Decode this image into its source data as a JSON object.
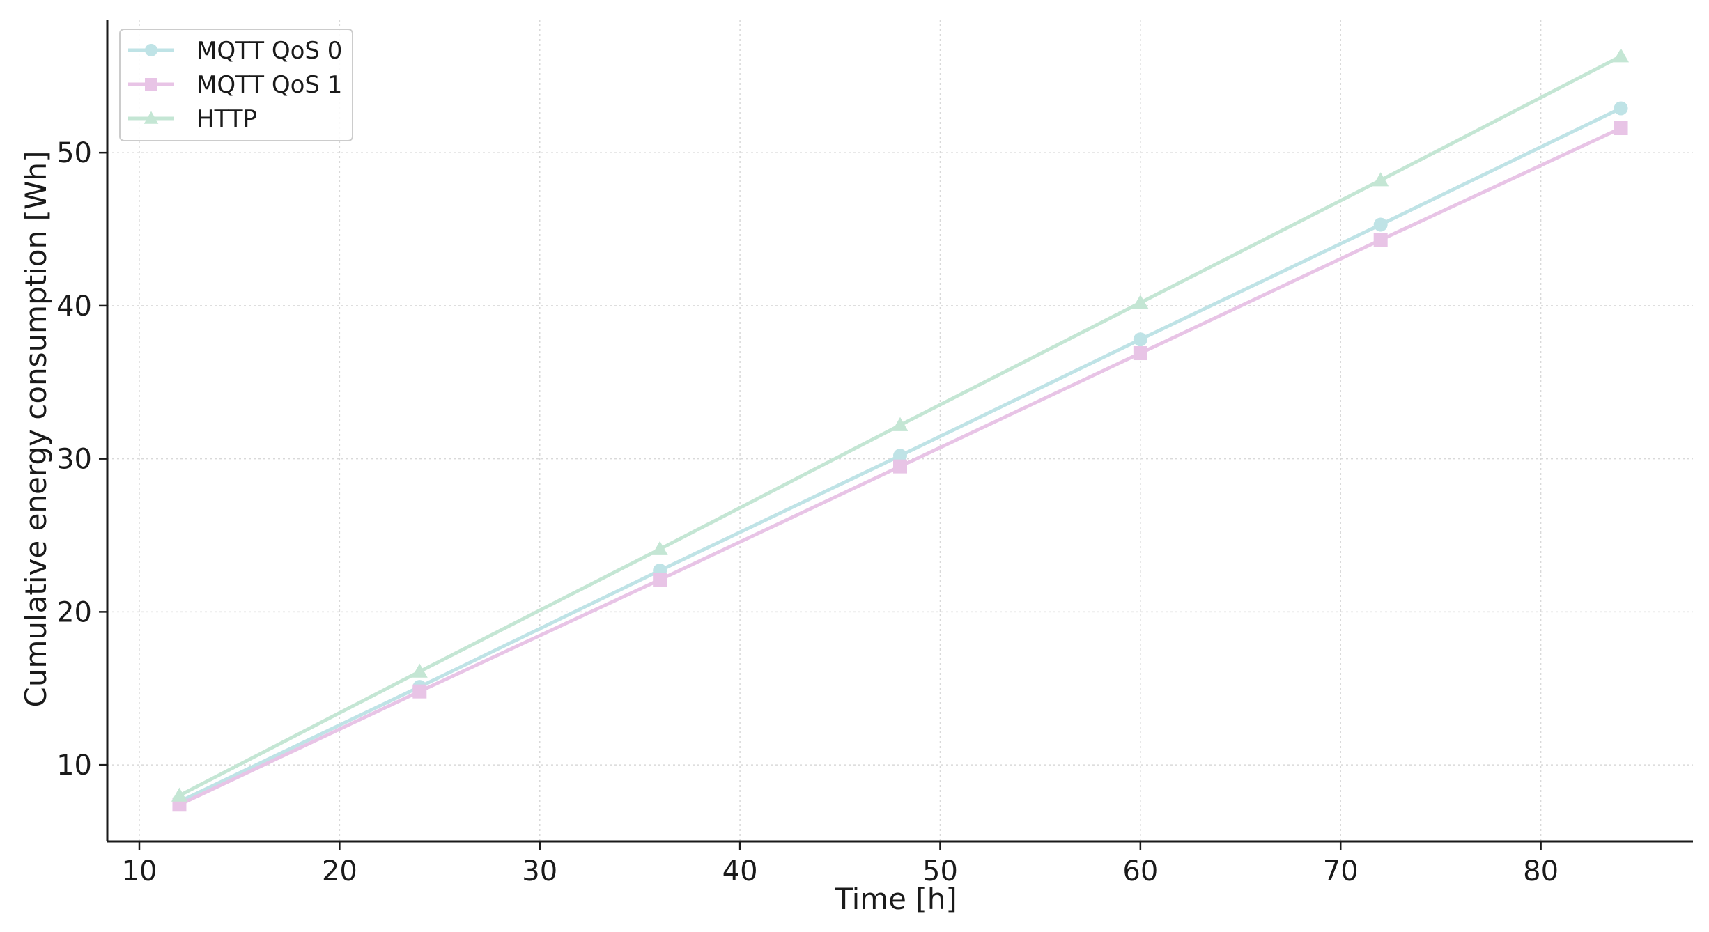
{
  "chart_data": {
    "type": "line",
    "title": "",
    "xlabel": "Time [h]",
    "ylabel": "Cumulative energy consumption [Wh]",
    "xlim": [
      8.4,
      87.6
    ],
    "ylim": [
      5.0,
      58.7
    ],
    "xticks": [
      10,
      20,
      30,
      40,
      50,
      60,
      70,
      80
    ],
    "yticks": [
      10,
      20,
      30,
      40,
      50
    ],
    "grid": true,
    "legend_position": "top-left",
    "x": [
      12,
      24,
      36,
      48,
      60,
      72,
      84
    ],
    "series": [
      {
        "name": "MQTT QoS 0",
        "marker": "circle",
        "color": "#bfe3e6",
        "values": [
          7.6,
          15.1,
          22.7,
          30.2,
          37.8,
          45.3,
          52.9
        ]
      },
      {
        "name": "MQTT QoS 1",
        "marker": "square",
        "color": "#e8c4e6",
        "values": [
          7.4,
          14.8,
          22.1,
          29.5,
          36.9,
          44.3,
          51.6
        ]
      },
      {
        "name": "HTTP",
        "marker": "triangle",
        "color": "#c4e6d4",
        "values": [
          8.0,
          16.1,
          24.1,
          32.2,
          40.2,
          48.2,
          56.3
        ]
      }
    ]
  }
}
